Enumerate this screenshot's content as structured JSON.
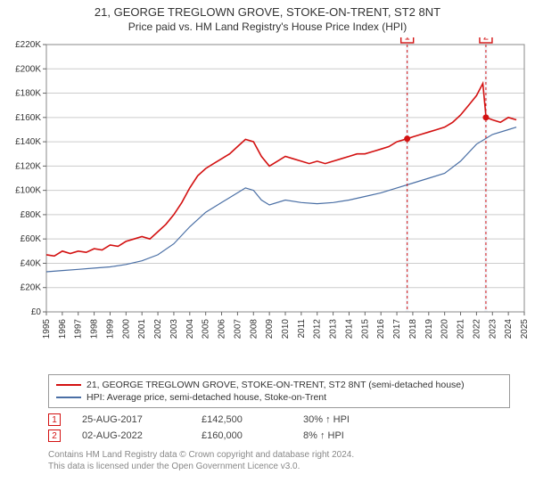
{
  "title_line1": "21, GEORGE TREGLOWN GROVE, STOKE-ON-TRENT, ST2 8NT",
  "title_line2": "Price paid vs. HM Land Registry's House Price Index (HPI)",
  "chart": {
    "type": "line",
    "background_color": "#ffffff",
    "plot_border_color": "#888888",
    "grid_color": "#cccccc",
    "x": {
      "min": 1995,
      "max": 2025,
      "tick_step": 1,
      "tick_labels": [
        "1995",
        "1996",
        "1997",
        "1998",
        "1999",
        "2000",
        "2001",
        "2002",
        "2003",
        "2004",
        "2005",
        "2006",
        "2007",
        "2008",
        "2009",
        "2010",
        "2011",
        "2012",
        "2013",
        "2014",
        "2015",
        "2016",
        "2017",
        "2018",
        "2019",
        "2020",
        "2021",
        "2022",
        "2023",
        "2024",
        "2025"
      ]
    },
    "y": {
      "min": 0,
      "max": 220000,
      "tick_step": 20000,
      "tick_labels": [
        "£0",
        "£20K",
        "£40K",
        "£60K",
        "£80K",
        "£100K",
        "£120K",
        "£140K",
        "£160K",
        "£180K",
        "£200K",
        "£220K"
      ]
    },
    "series": [
      {
        "id": "property",
        "label": "21, GEORGE TREGLOWN GROVE, STOKE-ON-TRENT, ST2 8NT (semi-detached house)",
        "color": "#d31111",
        "line_width": 1.6,
        "points": [
          [
            1995,
            47000
          ],
          [
            1995.5,
            46000
          ],
          [
            1996,
            50000
          ],
          [
            1996.5,
            48000
          ],
          [
            1997,
            50000
          ],
          [
            1997.5,
            49000
          ],
          [
            1998,
            52000
          ],
          [
            1998.5,
            51000
          ],
          [
            1999,
            55000
          ],
          [
            1999.5,
            54000
          ],
          [
            2000,
            58000
          ],
          [
            2000.5,
            60000
          ],
          [
            2001,
            62000
          ],
          [
            2001.5,
            60000
          ],
          [
            2002,
            66000
          ],
          [
            2002.5,
            72000
          ],
          [
            2003,
            80000
          ],
          [
            2003.5,
            90000
          ],
          [
            2004,
            102000
          ],
          [
            2004.5,
            112000
          ],
          [
            2005,
            118000
          ],
          [
            2005.5,
            122000
          ],
          [
            2006,
            126000
          ],
          [
            2006.5,
            130000
          ],
          [
            2007,
            136000
          ],
          [
            2007.5,
            142000
          ],
          [
            2008,
            140000
          ],
          [
            2008.5,
            128000
          ],
          [
            2009,
            120000
          ],
          [
            2009.5,
            124000
          ],
          [
            2010,
            128000
          ],
          [
            2010.5,
            126000
          ],
          [
            2011,
            124000
          ],
          [
            2011.5,
            122000
          ],
          [
            2012,
            124000
          ],
          [
            2012.5,
            122000
          ],
          [
            2013,
            124000
          ],
          [
            2013.5,
            126000
          ],
          [
            2014,
            128000
          ],
          [
            2014.5,
            130000
          ],
          [
            2015,
            130000
          ],
          [
            2015.5,
            132000
          ],
          [
            2016,
            134000
          ],
          [
            2016.5,
            136000
          ],
          [
            2017,
            140000
          ],
          [
            2017.65,
            142500
          ],
          [
            2018,
            144000
          ],
          [
            2018.5,
            146000
          ],
          [
            2019,
            148000
          ],
          [
            2019.5,
            150000
          ],
          [
            2020,
            152000
          ],
          [
            2020.5,
            156000
          ],
          [
            2021,
            162000
          ],
          [
            2021.5,
            170000
          ],
          [
            2022,
            178000
          ],
          [
            2022.4,
            188000
          ],
          [
            2022.6,
            160000
          ],
          [
            2023,
            158000
          ],
          [
            2023.5,
            156000
          ],
          [
            2024,
            160000
          ],
          [
            2024.5,
            158000
          ]
        ]
      },
      {
        "id": "hpi",
        "label": "HPI: Average price, semi-detached house, Stoke-on-Trent",
        "color": "#4a6fa5",
        "line_width": 1.2,
        "points": [
          [
            1995,
            33000
          ],
          [
            1996,
            34000
          ],
          [
            1997,
            35000
          ],
          [
            1998,
            36000
          ],
          [
            1999,
            37000
          ],
          [
            2000,
            39000
          ],
          [
            2001,
            42000
          ],
          [
            2002,
            47000
          ],
          [
            2003,
            56000
          ],
          [
            2004,
            70000
          ],
          [
            2005,
            82000
          ],
          [
            2006,
            90000
          ],
          [
            2007,
            98000
          ],
          [
            2007.5,
            102000
          ],
          [
            2008,
            100000
          ],
          [
            2008.5,
            92000
          ],
          [
            2009,
            88000
          ],
          [
            2010,
            92000
          ],
          [
            2011,
            90000
          ],
          [
            2012,
            89000
          ],
          [
            2013,
            90000
          ],
          [
            2014,
            92000
          ],
          [
            2015,
            95000
          ],
          [
            2016,
            98000
          ],
          [
            2017,
            102000
          ],
          [
            2018,
            106000
          ],
          [
            2019,
            110000
          ],
          [
            2020,
            114000
          ],
          [
            2021,
            124000
          ],
          [
            2022,
            138000
          ],
          [
            2023,
            146000
          ],
          [
            2024,
            150000
          ],
          [
            2024.5,
            152000
          ]
        ]
      }
    ],
    "markers": [
      {
        "n": "1",
        "x": 2017.65,
        "y": 142500,
        "band": [
          2017.55,
          2017.75
        ]
      },
      {
        "n": "2",
        "x": 2022.59,
        "y": 160000,
        "band": [
          2022.49,
          2022.69
        ]
      }
    ],
    "marker_color": "#d31111",
    "band_color": "#e8edf5"
  },
  "legend": {
    "items": [
      {
        "color": "#d31111",
        "label": "21, GEORGE TREGLOWN GROVE, STOKE-ON-TRENT, ST2 8NT (semi-detached house)"
      },
      {
        "color": "#4a6fa5",
        "label": "HPI: Average price, semi-detached house, Stoke-on-Trent"
      }
    ]
  },
  "transactions": [
    {
      "n": "1",
      "date": "25-AUG-2017",
      "price": "£142,500",
      "delta": "30% ↑ HPI"
    },
    {
      "n": "2",
      "date": "02-AUG-2022",
      "price": "£160,000",
      "delta": "8% ↑ HPI"
    }
  ],
  "credits_line1": "Contains HM Land Registry data © Crown copyright and database right 2024.",
  "credits_line2": "This data is licensed under the Open Government Licence v3.0."
}
